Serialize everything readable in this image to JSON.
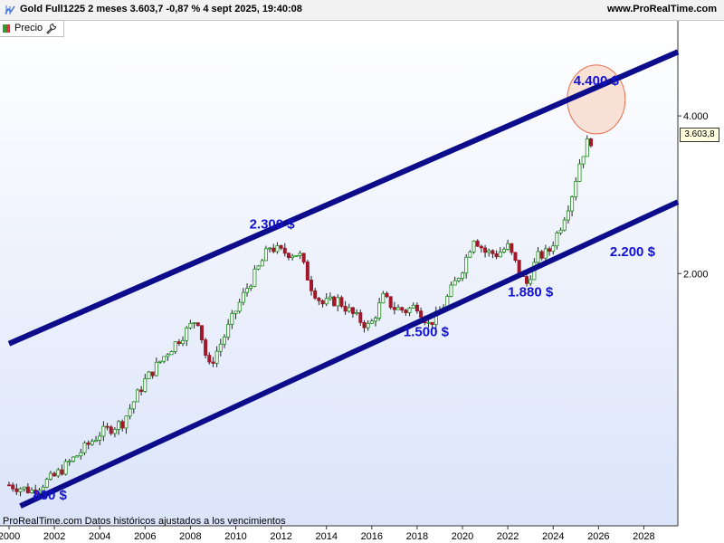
{
  "header": {
    "title": "Gold Full1225 2 meses 3.603,7 -0,87 % 4 sept 2025, 19:40:08",
    "site": "www.ProRealTime.com"
  },
  "legend": {
    "label": "Precio"
  },
  "footer": {
    "text": "ProRealTime.com  Datos históricos ajustados a los vencimientos"
  },
  "price_tag": "3.603,8",
  "colors": {
    "channel": "#0d0d8c",
    "annotation": "#1212d4",
    "candle_up": "#1a8c1a",
    "candle_down": "#a0182a",
    "highlight_circle": "#f8d8c8",
    "plot_background_end": "#dbe4fa"
  },
  "chart_data": {
    "type": "candlestick",
    "title": "Gold Full1225 2 meses",
    "y_scale": "log",
    "ylim": [
      660,
      6100
    ],
    "xlim": [
      2000,
      2029.5
    ],
    "x_ticks": [
      "2000",
      "2002",
      "2004",
      "2006",
      "2008",
      "2010",
      "2012",
      "2014",
      "2016",
      "2018",
      "2020",
      "2022",
      "2024",
      "2026",
      "2028"
    ],
    "y_ticks": [
      "2.000",
      "4.000"
    ],
    "last_price": "3.603,8",
    "series": [
      {
        "values_close": [
          {
            "x": 2000.0,
            "y": 790
          },
          {
            "x": 2001.0,
            "y": 770
          },
          {
            "x": 2002.0,
            "y": 820
          },
          {
            "x": 2003.0,
            "y": 900
          },
          {
            "x": 2004.0,
            "y": 990
          },
          {
            "x": 2005.0,
            "y": 1040
          },
          {
            "x": 2006.0,
            "y": 1250
          },
          {
            "x": 2007.0,
            "y": 1420
          },
          {
            "x": 2007.8,
            "y": 1550
          },
          {
            "x": 2008.3,
            "y": 1650
          },
          {
            "x": 2008.8,
            "y": 1320
          },
          {
            "x": 2009.5,
            "y": 1520
          },
          {
            "x": 2010.0,
            "y": 1700
          },
          {
            "x": 2010.5,
            "y": 1880
          },
          {
            "x": 2011.0,
            "y": 2050
          },
          {
            "x": 2011.5,
            "y": 2250
          },
          {
            "x": 2012.0,
            "y": 2200
          },
          {
            "x": 2012.8,
            "y": 2180
          },
          {
            "x": 2013.3,
            "y": 1900
          },
          {
            "x": 2013.8,
            "y": 1750
          },
          {
            "x": 2014.5,
            "y": 1780
          },
          {
            "x": 2015.3,
            "y": 1650
          },
          {
            "x": 2015.9,
            "y": 1580
          },
          {
            "x": 2016.5,
            "y": 1800
          },
          {
            "x": 2017.0,
            "y": 1720
          },
          {
            "x": 2017.5,
            "y": 1700
          },
          {
            "x": 2018.0,
            "y": 1740
          },
          {
            "x": 2018.5,
            "y": 1600
          },
          {
            "x": 2019.0,
            "y": 1680
          },
          {
            "x": 2019.5,
            "y": 1860
          },
          {
            "x": 2020.0,
            "y": 2050
          },
          {
            "x": 2020.5,
            "y": 2350
          },
          {
            "x": 2021.0,
            "y": 2200
          },
          {
            "x": 2021.5,
            "y": 2180
          },
          {
            "x": 2022.0,
            "y": 2250
          },
          {
            "x": 2022.5,
            "y": 2020
          },
          {
            "x": 2022.8,
            "y": 1900
          },
          {
            "x": 2023.3,
            "y": 2150
          },
          {
            "x": 2023.8,
            "y": 2200
          },
          {
            "x": 2024.3,
            "y": 2450
          },
          {
            "x": 2024.8,
            "y": 2800
          },
          {
            "x": 2025.2,
            "y": 3300
          },
          {
            "x": 2025.5,
            "y": 3550
          },
          {
            "x": 2025.7,
            "y": 3604
          }
        ]
      }
    ],
    "trendlines": [
      {
        "from": {
          "x": 2000,
          "y": 1470
        },
        "to": {
          "x": 2029.5,
          "y": 5300
        }
      },
      {
        "from": {
          "x": 2000.5,
          "y": 720
        },
        "to": {
          "x": 2029.5,
          "y": 2740
        }
      }
    ],
    "annotations": [
      {
        "text": "2.300 $",
        "x": 2011.6,
        "y": 2440
      },
      {
        "text": "830 $",
        "x": 2001.8,
        "y": 740
      },
      {
        "text": "1.500 $",
        "x": 2018.4,
        "y": 1520
      },
      {
        "text": "1.880 $",
        "x": 2023.0,
        "y": 1810
      },
      {
        "text": "2.200 $",
        "x": 2027.5,
        "y": 2160
      },
      {
        "text": "4.400 $",
        "x": 2025.9,
        "y": 4580
      }
    ],
    "highlight": {
      "x": 2025.9,
      "y": 4300
    }
  }
}
